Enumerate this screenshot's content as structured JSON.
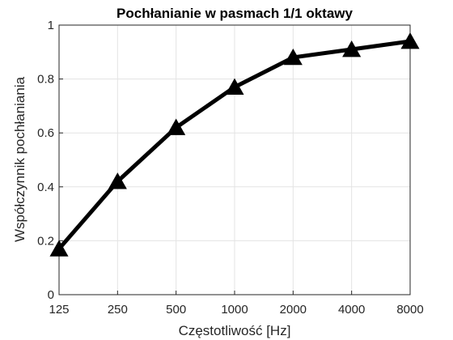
{
  "chart_data": {
    "type": "line",
    "title": "Pochłanianie w pasmach 1/1 oktawy",
    "xlabel": "Częstotliwość [Hz]",
    "ylabel": "Współczynnik pochłaniania",
    "categories": [
      "125",
      "250",
      "500",
      "1000",
      "2000",
      "4000",
      "8000"
    ],
    "series": [
      {
        "values": [
          0.17,
          0.42,
          0.62,
          0.77,
          0.88,
          0.91,
          0.94
        ],
        "marker": "triangle",
        "color": "#000000"
      }
    ],
    "ylim": [
      0,
      1
    ],
    "yticks": [
      "0",
      "0.2",
      "0.4",
      "0.6",
      "0.8",
      "1"
    ],
    "ytick_values": [
      0,
      0.2,
      0.4,
      0.6,
      0.8,
      1
    ],
    "grid": true,
    "legend": "none"
  }
}
